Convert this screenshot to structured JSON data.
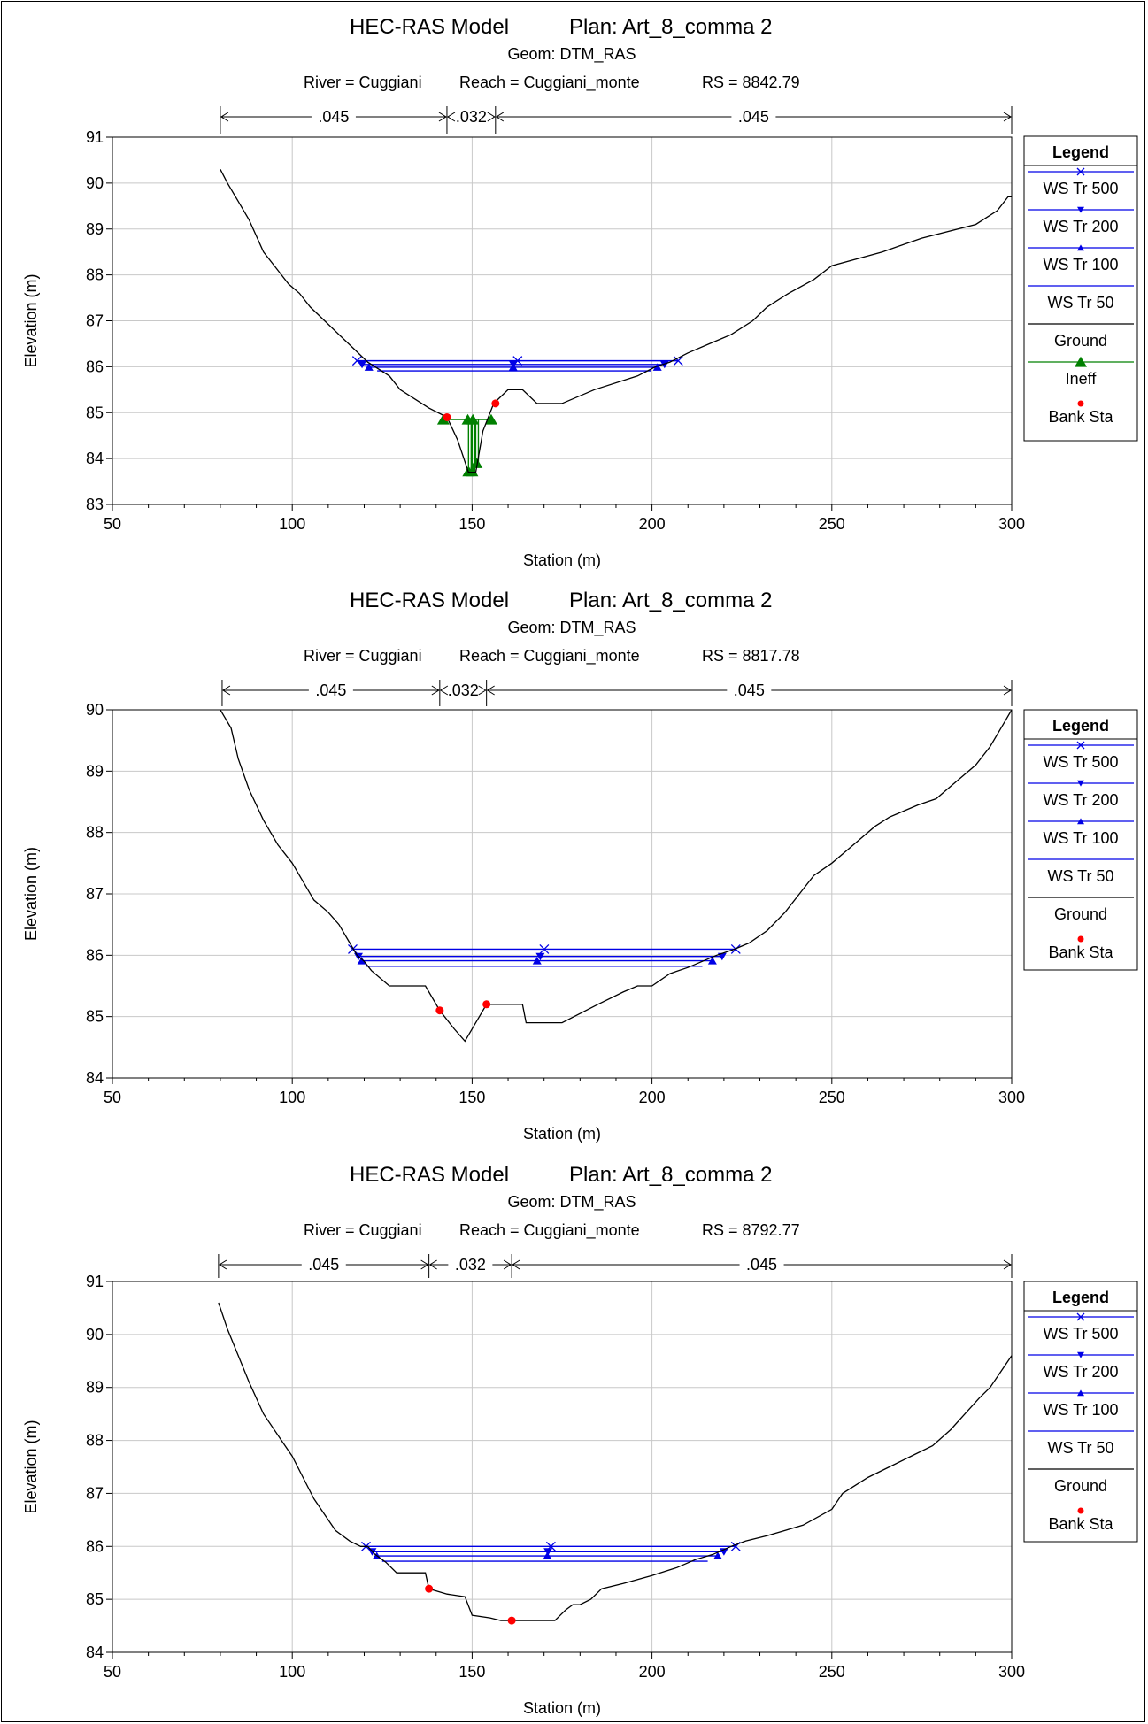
{
  "chart_data": [
    {
      "type": "line",
      "title": "HEC-RAS Model",
      "plan": "Plan: Art_8_comma 2",
      "geom": "Geom: DTM_RAS",
      "river": "River = Cuggiani",
      "reach": "Reach = Cuggiani_monte",
      "rs": "RS = 8842.79",
      "xlabel": "Station (m)",
      "ylabel": "Elevation (m)",
      "xlim": [
        50,
        300
      ],
      "ylim": [
        83,
        91
      ],
      "xticks": [
        50,
        100,
        150,
        200,
        250,
        300
      ],
      "yticks": [
        83,
        84,
        85,
        86,
        87,
        88,
        89,
        90,
        91
      ],
      "grid": true,
      "legend_title": "Legend",
      "legend_position": "right",
      "manning": [
        {
          "label": ".045",
          "from": 80,
          "to": 143
        },
        {
          "label": ".032",
          "from": 143,
          "to": 156.5
        },
        {
          "label": ".045",
          "from": 156.5,
          "to": 300
        }
      ],
      "ground": [
        [
          80,
          90.3
        ],
        [
          82,
          90.0
        ],
        [
          85,
          89.6
        ],
        [
          88,
          89.2
        ],
        [
          92,
          88.5
        ],
        [
          96,
          88.1
        ],
        [
          99,
          87.8
        ],
        [
          102,
          87.6
        ],
        [
          105,
          87.3
        ],
        [
          109,
          87.0
        ],
        [
          113,
          86.7
        ],
        [
          117,
          86.4
        ],
        [
          121,
          86.1
        ],
        [
          125,
          85.9
        ],
        [
          127,
          85.8
        ],
        [
          130,
          85.5
        ],
        [
          134,
          85.3
        ],
        [
          138,
          85.1
        ],
        [
          143,
          84.9
        ],
        [
          146,
          84.4
        ],
        [
          149,
          83.7
        ],
        [
          151,
          83.7
        ],
        [
          153,
          84.6
        ],
        [
          156,
          85.2
        ],
        [
          160,
          85.5
        ],
        [
          164,
          85.5
        ],
        [
          168,
          85.2
        ],
        [
          175,
          85.2
        ],
        [
          184,
          85.5
        ],
        [
          196,
          85.8
        ],
        [
          201,
          86.0
        ],
        [
          205,
          86.1
        ],
        [
          210,
          86.3
        ],
        [
          216,
          86.5
        ],
        [
          222,
          86.7
        ],
        [
          228,
          87.0
        ],
        [
          232,
          87.3
        ],
        [
          238,
          87.6
        ],
        [
          245,
          87.9
        ],
        [
          250,
          88.2
        ],
        [
          264,
          88.5
        ],
        [
          275,
          88.8
        ],
        [
          290,
          89.1
        ],
        [
          296,
          89.4
        ],
        [
          299,
          89.7
        ],
        [
          300,
          89.7
        ]
      ],
      "series": [
        {
          "name": "WS Tr 500",
          "color": "#0000e6",
          "marker": "x",
          "elev": 86.13,
          "x1": 118,
          "x2": 207.3
        },
        {
          "name": "WS Tr 200",
          "color": "#0000e6",
          "marker": "tri-down",
          "elev": 86.05,
          "x1": 119.4,
          "x2": 203.5
        },
        {
          "name": "WS Tr 100",
          "color": "#0000e6",
          "marker": "tri-up",
          "elev": 85.99,
          "x1": 121.3,
          "x2": 201.5
        },
        {
          "name": "WS Tr 50",
          "color": "#0000e6",
          "marker": "none",
          "elev": 85.91,
          "x1": 123.6,
          "x2": 199.8
        }
      ],
      "ground_name": "Ground",
      "ineff": {
        "name": "Ineff",
        "color": "#008000",
        "line": [
          [
            142,
            84.85
          ],
          [
            155.5,
            84.85
          ]
        ],
        "columns": [
          {
            "x": 149,
            "top": 84.85,
            "bottom": 83.72
          },
          {
            "x": 150,
            "top": 84.85,
            "bottom": 83.72
          },
          {
            "x": 151,
            "top": 84.85,
            "bottom": 83.9
          }
        ],
        "markers": [
          [
            142,
            84.85
          ],
          [
            148.8,
            84.85
          ],
          [
            150.2,
            84.85
          ],
          [
            155.3,
            84.85
          ],
          [
            149,
            83.72
          ],
          [
            150,
            83.72
          ],
          [
            151.2,
            83.9
          ]
        ]
      },
      "bank": {
        "name": "Bank Sta",
        "color": "#ff0000",
        "points": [
          [
            143,
            84.9
          ],
          [
            156.5,
            85.2
          ]
        ]
      }
    },
    {
      "type": "line",
      "title": "HEC-RAS Model",
      "plan": "Plan: Art_8_comma 2",
      "geom": "Geom: DTM_RAS",
      "river": "River = Cuggiani",
      "reach": "Reach = Cuggiani_monte",
      "rs": "RS = 8817.78",
      "xlabel": "Station (m)",
      "ylabel": "Elevation (m)",
      "xlim": [
        50,
        300
      ],
      "ylim": [
        84,
        90
      ],
      "xticks": [
        50,
        100,
        150,
        200,
        250,
        300
      ],
      "yticks": [
        84,
        85,
        86,
        87,
        88,
        89,
        90
      ],
      "grid": true,
      "legend_title": "Legend",
      "legend_position": "right",
      "manning": [
        {
          "label": ".045",
          "from": 80.5,
          "to": 141
        },
        {
          "label": ".032",
          "from": 141,
          "to": 154
        },
        {
          "label": ".045",
          "from": 154,
          "to": 300
        }
      ],
      "ground": [
        [
          80,
          90.0
        ],
        [
          83,
          89.7
        ],
        [
          85,
          89.2
        ],
        [
          88,
          88.7
        ],
        [
          92,
          88.2
        ],
        [
          96,
          87.8
        ],
        [
          100,
          87.5
        ],
        [
          103,
          87.2
        ],
        [
          106,
          86.9
        ],
        [
          110,
          86.7
        ],
        [
          113,
          86.5
        ],
        [
          116,
          86.2
        ],
        [
          118,
          86.0
        ],
        [
          120,
          85.9
        ],
        [
          122,
          85.75
        ],
        [
          127,
          85.5
        ],
        [
          137,
          85.5
        ],
        [
          141,
          85.1
        ],
        [
          145,
          84.8
        ],
        [
          148,
          84.6
        ],
        [
          151,
          84.9
        ],
        [
          154,
          85.2
        ],
        [
          160,
          85.2
        ],
        [
          164,
          85.2
        ],
        [
          165,
          84.9
        ],
        [
          170,
          84.9
        ],
        [
          175,
          84.9
        ],
        [
          185,
          85.2
        ],
        [
          192,
          85.4
        ],
        [
          196,
          85.5
        ],
        [
          200,
          85.5
        ],
        [
          205,
          85.7
        ],
        [
          210,
          85.8
        ],
        [
          218,
          86.0
        ],
        [
          223,
          86.1
        ],
        [
          227,
          86.2
        ],
        [
          232,
          86.4
        ],
        [
          237,
          86.7
        ],
        [
          241,
          87.0
        ],
        [
          245,
          87.3
        ],
        [
          250,
          87.5
        ],
        [
          254,
          87.7
        ],
        [
          258,
          87.9
        ],
        [
          262,
          88.1
        ],
        [
          266,
          88.25
        ],
        [
          270,
          88.35
        ],
        [
          274,
          88.45
        ],
        [
          279,
          88.55
        ],
        [
          282,
          88.7
        ],
        [
          286,
          88.9
        ],
        [
          290,
          89.1
        ],
        [
          294,
          89.4
        ],
        [
          298,
          89.8
        ],
        [
          300,
          90.0
        ]
      ],
      "series": [
        {
          "name": "WS Tr 500",
          "color": "#0000e6",
          "marker": "x",
          "elev": 86.1,
          "x1": 116.8,
          "x2": 223.3
        },
        {
          "name": "WS Tr 200",
          "color": "#0000e6",
          "marker": "tri-down",
          "elev": 85.98,
          "x1": 118.4,
          "x2": 219.5
        },
        {
          "name": "WS Tr 100",
          "color": "#0000e6",
          "marker": "tri-up",
          "elev": 85.91,
          "x1": 119.3,
          "x2": 216.8
        },
        {
          "name": "WS Tr 50",
          "color": "#0000e6",
          "marker": "none",
          "elev": 85.82,
          "x1": 120.5,
          "x2": 214.0
        }
      ],
      "ground_name": "Ground",
      "bank": {
        "name": "Bank Sta",
        "color": "#ff0000",
        "points": [
          [
            141,
            85.1
          ],
          [
            154,
            85.2
          ]
        ]
      }
    },
    {
      "type": "line",
      "title": "HEC-RAS Model",
      "plan": "Plan: Art_8_comma 2",
      "geom": "Geom: DTM_RAS",
      "river": "River = Cuggiani",
      "reach": "Reach = Cuggiani_monte",
      "rs": "RS = 8792.77",
      "xlabel": "Station (m)",
      "ylabel": "Elevation (m)",
      "xlim": [
        50,
        300
      ],
      "ylim": [
        84,
        91
      ],
      "xticks": [
        50,
        100,
        150,
        200,
        250,
        300
      ],
      "yticks": [
        84,
        85,
        86,
        87,
        88,
        89,
        90,
        91
      ],
      "grid": true,
      "legend_title": "Legend",
      "legend_position": "right",
      "manning": [
        {
          "label": ".045",
          "from": 79.5,
          "to": 138
        },
        {
          "label": ".032",
          "from": 138,
          "to": 161
        },
        {
          "label": ".045",
          "from": 161,
          "to": 300
        }
      ],
      "ground": [
        [
          79.5,
          90.6
        ],
        [
          82,
          90.1
        ],
        [
          85,
          89.6
        ],
        [
          88,
          89.1
        ],
        [
          92,
          88.5
        ],
        [
          97,
          88.0
        ],
        [
          100,
          87.7
        ],
        [
          103,
          87.3
        ],
        [
          106,
          86.9
        ],
        [
          109,
          86.6
        ],
        [
          112,
          86.3
        ],
        [
          116,
          86.1
        ],
        [
          119,
          86.0
        ],
        [
          121,
          86.0
        ],
        [
          123,
          85.85
        ],
        [
          126,
          85.7
        ],
        [
          129,
          85.5
        ],
        [
          137,
          85.5
        ],
        [
          138,
          85.2
        ],
        [
          143,
          85.1
        ],
        [
          148,
          85.05
        ],
        [
          150,
          84.7
        ],
        [
          155,
          84.65
        ],
        [
          158,
          84.6
        ],
        [
          165,
          84.6
        ],
        [
          173,
          84.6
        ],
        [
          176,
          84.8
        ],
        [
          178,
          84.9
        ],
        [
          180,
          84.9
        ],
        [
          183,
          85.0
        ],
        [
          186,
          85.2
        ],
        [
          192,
          85.3
        ],
        [
          200,
          85.45
        ],
        [
          207,
          85.6
        ],
        [
          212,
          85.75
        ],
        [
          217,
          85.85
        ],
        [
          222,
          86.0
        ],
        [
          226,
          86.1
        ],
        [
          232,
          86.2
        ],
        [
          242,
          86.4
        ],
        [
          250,
          86.7
        ],
        [
          253,
          87.0
        ],
        [
          260,
          87.3
        ],
        [
          266,
          87.5
        ],
        [
          272,
          87.7
        ],
        [
          278,
          87.9
        ],
        [
          283,
          88.2
        ],
        [
          287,
          88.5
        ],
        [
          291,
          88.8
        ],
        [
          294,
          89.0
        ],
        [
          297,
          89.3
        ],
        [
          300,
          89.6
        ]
      ],
      "series": [
        {
          "name": "WS Tr 500",
          "color": "#0000e6",
          "marker": "x",
          "elev": 86.0,
          "x1": 120.5,
          "x2": 223.3
        },
        {
          "name": "WS Tr 200",
          "color": "#0000e6",
          "marker": "tri-down",
          "elev": 85.9,
          "x1": 122.2,
          "x2": 220.0
        },
        {
          "name": "WS Tr 100",
          "color": "#0000e6",
          "marker": "tri-up",
          "elev": 85.82,
          "x1": 123.5,
          "x2": 218.3
        },
        {
          "name": "WS Tr 50",
          "color": "#0000e6",
          "marker": "none",
          "elev": 85.72,
          "x1": 125.0,
          "x2": 215.5
        }
      ],
      "ground_name": "Ground",
      "bank": {
        "name": "Bank Sta",
        "color": "#ff0000",
        "points": [
          [
            138,
            85.2
          ],
          [
            161,
            84.6
          ]
        ]
      }
    }
  ]
}
